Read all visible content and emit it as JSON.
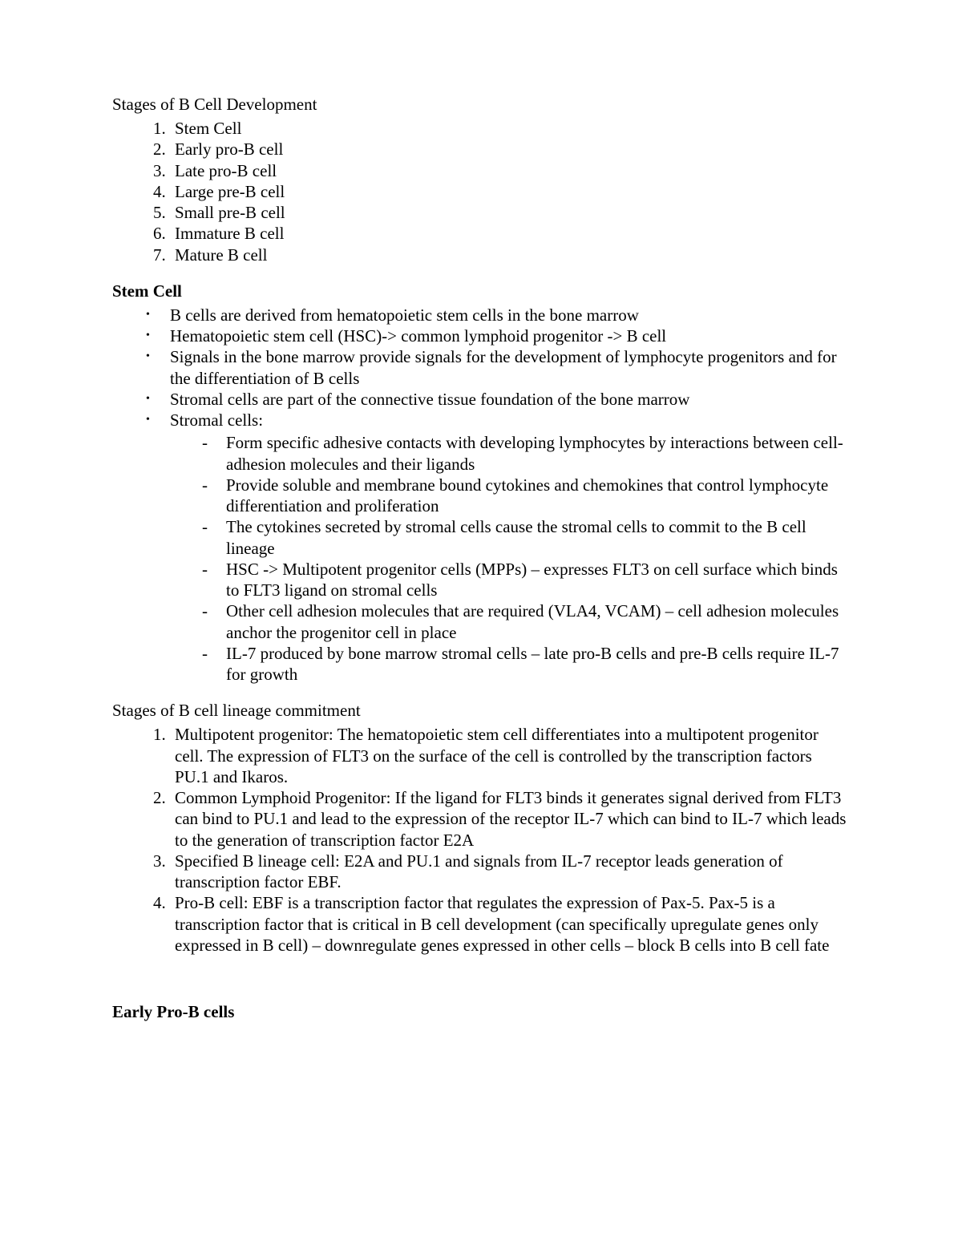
{
  "stages_title": "Stages of B Cell Development",
  "stages": [
    "Stem Cell",
    "Early pro-B cell",
    "Late pro-B cell",
    "Large pre-B cell",
    "Small pre-B cell",
    "Immature B cell",
    "Mature B cell"
  ],
  "stemcell_heading": "Stem Cell",
  "stemcell_bullets": [
    "B cells are derived from hematopoietic stem cells in the bone marrow",
    "Hematopoietic stem cell (HSC)-> common lymphoid progenitor -> B cell",
    "Signals in the bone marrow provide signals for the development of lymphocyte progenitors and for the differentiation of B cells",
    "Stromal cells are part of the connective tissue foundation of the bone marrow",
    "Stromal cells:"
  ],
  "stromal_sub": [
    "Form specific adhesive contacts with developing lymphocytes by interactions between cell-adhesion molecules and their ligands",
    "Provide soluble and membrane bound cytokines and chemokines that control lymphocyte differentiation and proliferation",
    "The cytokines secreted by stromal cells cause the stromal cells to commit to the B cell lineage",
    "HSC -> Multipotent progenitor cells (MPPs) – expresses FLT3 on cell surface which binds to FLT3 ligand on stromal cells",
    "Other cell adhesion molecules that are required (VLA4, VCAM) – cell adhesion molecules anchor the progenitor cell in place",
    "IL-7 produced by bone marrow stromal cells – late pro-B cells and pre-B cells require IL-7 for growth"
  ],
  "lineage_title": "Stages of B cell lineage commitment",
  "lineage_items": [
    "Multipotent progenitor: The hematopoietic stem cell differentiates into a multipotent progenitor cell. The expression of FLT3 on the surface of the cell is controlled by the transcription factors PU.1 and Ikaros.",
    "Common Lymphoid Progenitor: If the ligand for FLT3 binds it generates signal derived from FLT3 can bind to PU.1 and lead to the expression of the receptor IL-7 which can bind to IL-7 which leads to the generation of transcription factor E2A",
    "Specified B lineage cell: E2A and PU.1 and signals from IL-7 receptor leads generation of transcription factor EBF.",
    "Pro-B cell: EBF is a transcription factor that regulates the expression of Pax-5. Pax-5 is a transcription factor that is critical in B cell development (can specifically upregulate genes only expressed in B cell) – downregulate genes expressed in other cells – block B cells into B cell fate"
  ],
  "early_prob_heading": "Early Pro-B cells"
}
